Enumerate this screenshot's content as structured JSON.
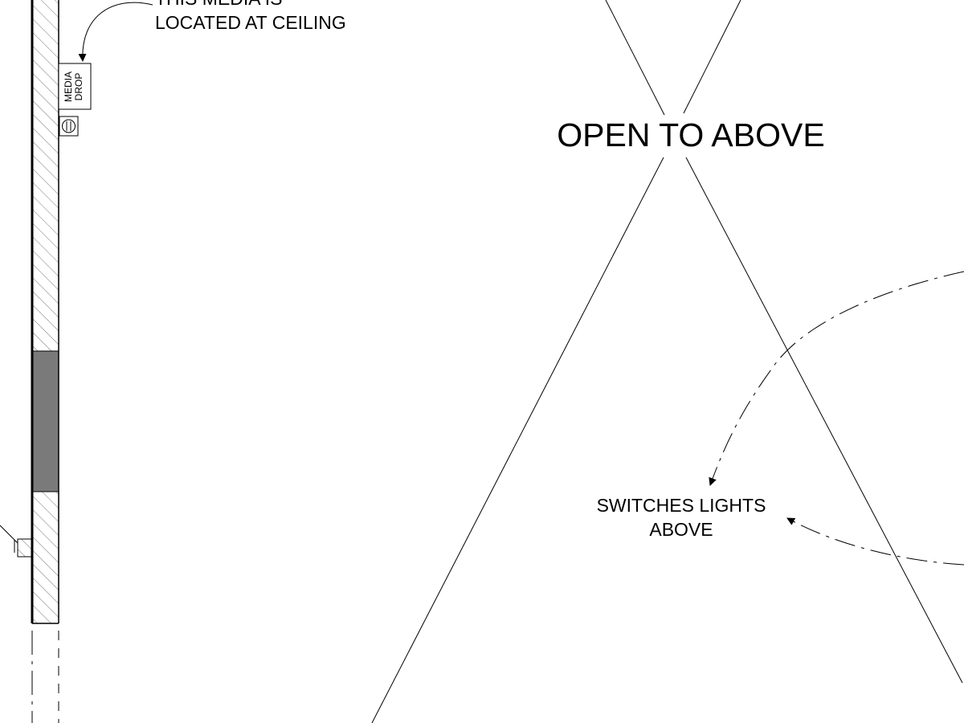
{
  "annotations": {
    "media_note": {
      "line1": "THIS MEDIA IS",
      "line2": "LOCATED AT CEILING"
    },
    "media_tag": {
      "line1": "MEDIA",
      "line2": "DROP"
    },
    "open_to_above": "OPEN TO ABOVE",
    "switch_note": {
      "line1": "SWITCHES LIGHTS",
      "line2": "ABOVE"
    }
  },
  "colors": {
    "line": "#000000",
    "wall_infill": "#7a7a7a",
    "background": "#ffffff"
  }
}
